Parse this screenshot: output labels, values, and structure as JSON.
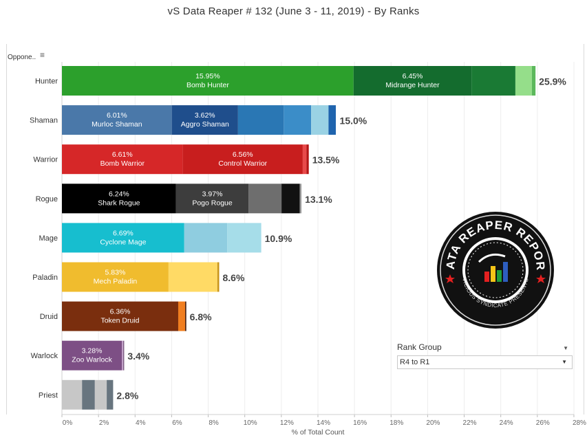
{
  "title": "vS Data Reaper #  132 (June 3 - 11, 2019) - By Ranks",
  "opponent_header": "Oppone..",
  "sort_icon": "sort-icon",
  "colors": {
    "hunter": [
      "#2ca02c",
      "#146c2e",
      "#1a7a34",
      "#95de8a",
      "#5cb85c"
    ],
    "shaman": [
      "#4a78a9",
      "#1f4e8c",
      "#2a77b4",
      "#3b8dc8",
      "#9ad2e4",
      "#1f64ae"
    ],
    "warrior": [
      "#d62728",
      "#c81e1e",
      "#e84a4a",
      "#b51515"
    ],
    "rogue": [
      "#000000",
      "#3d3d3d",
      "#6e6e6e",
      "#111111",
      "#999999"
    ],
    "mage": [
      "#17becf",
      "#8fcde0",
      "#a6dde9"
    ],
    "paladin": [
      "#f0bc2e",
      "#ffda65",
      "#c9961a"
    ],
    "druid": [
      "#7a2e0e",
      "#f07e20",
      "#3d1607"
    ],
    "warlock": [
      "#7d4f85",
      "#c29fc8",
      "#5a3560"
    ],
    "priest": [
      "#c7c7c7",
      "#68757f",
      "#c7c7c7",
      "#68757f"
    ]
  },
  "chart_data": {
    "type": "bar",
    "orientation": "horizontal",
    "stacked": true,
    "title": "vS Data Reaper #  132 (June 3 - 11, 2019) - By Ranks",
    "xlabel": "% of Total Count",
    "xlim": [
      0,
      28
    ],
    "x_ticks": [
      "0%",
      "2%",
      "4%",
      "6%",
      "8%",
      "10%",
      "12%",
      "14%",
      "16%",
      "18%",
      "20%",
      "22%",
      "24%",
      "26%",
      "28%"
    ],
    "categories": [
      "Hunter",
      "Shaman",
      "Warrior",
      "Rogue",
      "Mage",
      "Paladin",
      "Druid",
      "Warlock",
      "Priest"
    ],
    "totals": [
      25.9,
      15.0,
      13.5,
      13.1,
      10.9,
      8.6,
      6.8,
      3.4,
      2.8
    ],
    "total_labels": [
      "25.9%",
      "15.0%",
      "13.5%",
      "13.1%",
      "10.9%",
      "8.6%",
      "6.8%",
      "3.4%",
      "2.8%"
    ],
    "rows": [
      {
        "class": "Hunter",
        "segments": [
          {
            "value": 15.95,
            "pct": "15.95%",
            "name": "Bomb Hunter"
          },
          {
            "value": 6.45,
            "pct": "6.45%",
            "name": "Midrange Hunter"
          },
          {
            "value": 2.4
          },
          {
            "value": 0.9
          },
          {
            "value": 0.2
          }
        ]
      },
      {
        "class": "Shaman",
        "segments": [
          {
            "value": 6.01,
            "pct": "6.01%",
            "name": "Murloc Shaman"
          },
          {
            "value": 3.62,
            "pct": "3.62%",
            "name": "Aggro Shaman"
          },
          {
            "value": 2.5
          },
          {
            "value": 1.5
          },
          {
            "value": 0.95
          },
          {
            "value": 0.4
          }
        ]
      },
      {
        "class": "Warrior",
        "segments": [
          {
            "value": 6.61,
            "pct": "6.61%",
            "name": "Bomb Warrior"
          },
          {
            "value": 6.56,
            "pct": "6.56%",
            "name": "Control Warrior"
          },
          {
            "value": 0.2
          },
          {
            "value": 0.13
          }
        ]
      },
      {
        "class": "Rogue",
        "segments": [
          {
            "value": 6.24,
            "pct": "6.24%",
            "name": "Shark Rogue"
          },
          {
            "value": 3.97,
            "pct": "3.97%",
            "name": "Pogo Rogue"
          },
          {
            "value": 1.8
          },
          {
            "value": 1.0
          },
          {
            "value": 0.09
          }
        ]
      },
      {
        "class": "Mage",
        "segments": [
          {
            "value": 6.69,
            "pct": "6.69%",
            "name": "Cyclone Mage"
          },
          {
            "value": 2.35
          },
          {
            "value": 1.86
          }
        ]
      },
      {
        "class": "Paladin",
        "segments": [
          {
            "value": 5.83,
            "pct": "5.83%",
            "name": "Mech Paladin"
          },
          {
            "value": 2.67
          },
          {
            "value": 0.1
          }
        ]
      },
      {
        "class": "Druid",
        "segments": [
          {
            "value": 6.36,
            "pct": "6.36%",
            "name": "Token Druid"
          },
          {
            "value": 0.38
          },
          {
            "value": 0.06
          }
        ]
      },
      {
        "class": "Warlock",
        "segments": [
          {
            "value": 3.28,
            "pct": "3.28%",
            "name": "Zoo Warlock"
          },
          {
            "value": 0.08
          },
          {
            "value": 0.04
          }
        ]
      },
      {
        "class": "Priest",
        "segments": [
          {
            "value": 1.1
          },
          {
            "value": 0.7
          },
          {
            "value": 0.65
          },
          {
            "value": 0.35
          }
        ]
      }
    ]
  },
  "rank_filter": {
    "title": "Rank Group",
    "selected": "R4 to R1"
  },
  "logo": {
    "top_text": "DATA REAPER REPORT",
    "bottom_text": "VICIOUS SYNDICATE PRESENTS"
  }
}
